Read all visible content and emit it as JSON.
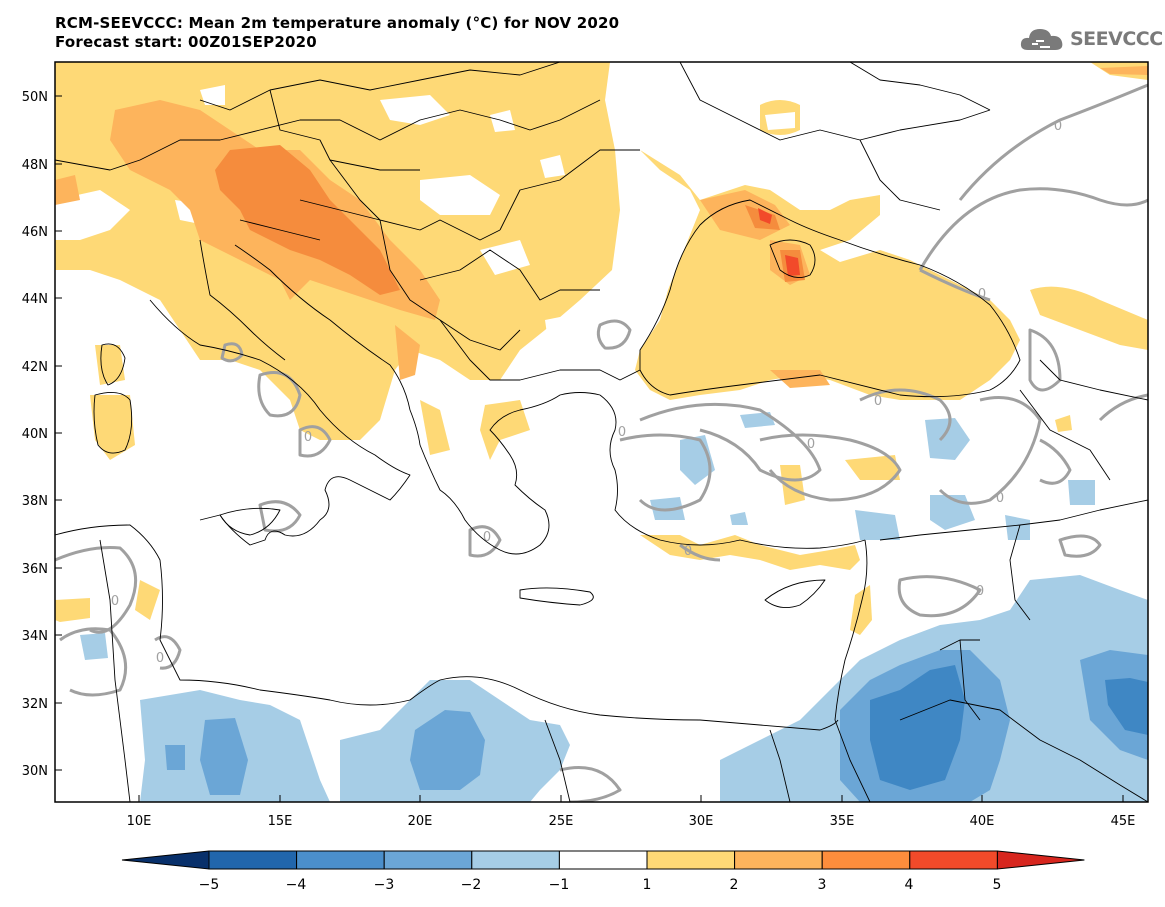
{
  "header": {
    "title_line1": "RCM-SEEVCCC: Mean 2m temperature anomaly (°C) for NOV 2020",
    "title_line2": "Forecast start: 00Z01SEP2020"
  },
  "logo": {
    "text": "SEEVCCC",
    "icon": "cloud-logo-icon"
  },
  "map": {
    "lat_ticks": [
      "50N",
      "48N",
      "46N",
      "44N",
      "42N",
      "40N",
      "38N",
      "36N",
      "34N",
      "32N",
      "30N"
    ],
    "lon_ticks": [
      "10E",
      "15E",
      "20E",
      "25E",
      "30E",
      "35E",
      "40E",
      "45E"
    ],
    "contour_label": "0"
  },
  "legend": {
    "labels": [
      "−5",
      "−4",
      "−3",
      "−2",
      "−1",
      "1",
      "2",
      "3",
      "4",
      "5"
    ],
    "colors": [
      "#08306b",
      "#2166ac",
      "#4b8fcb",
      "#6ba6d6",
      "#a6cde6",
      "#ffffff",
      "#fed976",
      "#fdb45c",
      "#fd8d3c",
      "#f24a2a",
      "#d7261e"
    ]
  },
  "palette": {
    "warm1": "#fed976",
    "warm2": "#fdb45c",
    "warm3": "#f58c3d",
    "warm4": "#f24a2a",
    "cool1": "#a6cde6",
    "cool2": "#6ba6d6",
    "cool3": "#3f87c4",
    "contour": "#a0a0a0",
    "border": "#000000"
  }
}
